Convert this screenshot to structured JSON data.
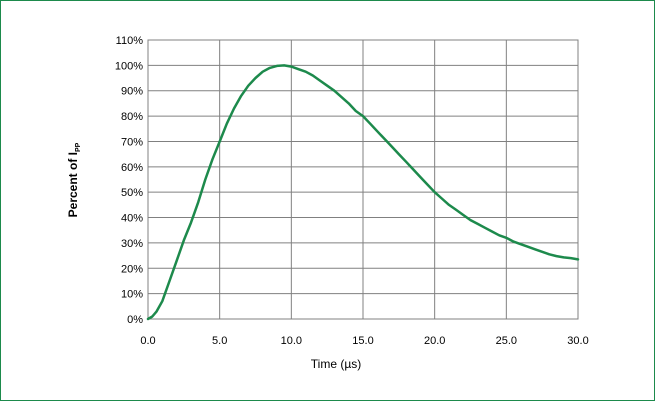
{
  "chart_data": {
    "type": "line",
    "xlabel": "Time (µs)",
    "ylabel": {
      "main": "Percent of I",
      "subscript": "PP"
    },
    "xlim": [
      0,
      30
    ],
    "ylim": [
      0,
      110
    ],
    "x_ticks": [
      "0.0",
      "5.0",
      "10.0",
      "15.0",
      "20.0",
      "25.0",
      "30.0"
    ],
    "y_ticks": [
      "0%",
      "10%",
      "20%",
      "30%",
      "40%",
      "50%",
      "60%",
      "70%",
      "80%",
      "90%",
      "100%",
      "110%"
    ],
    "grid": true,
    "legend": "none",
    "series": [
      {
        "color": "#1d8a4c",
        "points": [
          [
            0.0,
            0
          ],
          [
            0.3,
            1
          ],
          [
            0.6,
            3
          ],
          [
            1.0,
            7
          ],
          [
            1.5,
            15
          ],
          [
            2.0,
            23
          ],
          [
            2.5,
            31
          ],
          [
            3.0,
            38
          ],
          [
            3.5,
            46
          ],
          [
            4.0,
            55
          ],
          [
            4.5,
            63
          ],
          [
            5.0,
            70
          ],
          [
            5.5,
            77
          ],
          [
            6.0,
            83
          ],
          [
            6.5,
            88
          ],
          [
            7.0,
            92
          ],
          [
            7.5,
            95
          ],
          [
            8.0,
            97.5
          ],
          [
            8.5,
            99
          ],
          [
            9.0,
            99.8
          ],
          [
            9.5,
            100
          ],
          [
            10.0,
            99.5
          ],
          [
            10.5,
            98.5
          ],
          [
            11.0,
            97.5
          ],
          [
            11.5,
            96
          ],
          [
            12.0,
            94
          ],
          [
            12.5,
            92
          ],
          [
            13.0,
            90
          ],
          [
            13.5,
            87.5
          ],
          [
            14.0,
            85
          ],
          [
            14.5,
            82
          ],
          [
            15.0,
            80
          ],
          [
            15.5,
            77
          ],
          [
            16.0,
            74
          ],
          [
            16.5,
            71
          ],
          [
            17.0,
            68
          ],
          [
            17.5,
            65
          ],
          [
            18.0,
            62
          ],
          [
            18.5,
            59
          ],
          [
            19.0,
            56
          ],
          [
            19.5,
            53
          ],
          [
            20.0,
            50
          ],
          [
            20.5,
            47.5
          ],
          [
            21.0,
            45
          ],
          [
            21.5,
            43
          ],
          [
            22.0,
            41
          ],
          [
            22.5,
            39
          ],
          [
            23.0,
            37.5
          ],
          [
            23.5,
            36
          ],
          [
            24.0,
            34.5
          ],
          [
            24.5,
            33
          ],
          [
            25.0,
            32
          ],
          [
            25.5,
            30.5
          ],
          [
            26.0,
            29.5
          ],
          [
            26.5,
            28.5
          ],
          [
            27.0,
            27.5
          ],
          [
            27.5,
            26.5
          ],
          [
            28.0,
            25.5
          ],
          [
            28.5,
            24.8
          ],
          [
            29.0,
            24.3
          ],
          [
            29.5,
            24
          ],
          [
            30.0,
            23.5
          ]
        ]
      }
    ]
  }
}
